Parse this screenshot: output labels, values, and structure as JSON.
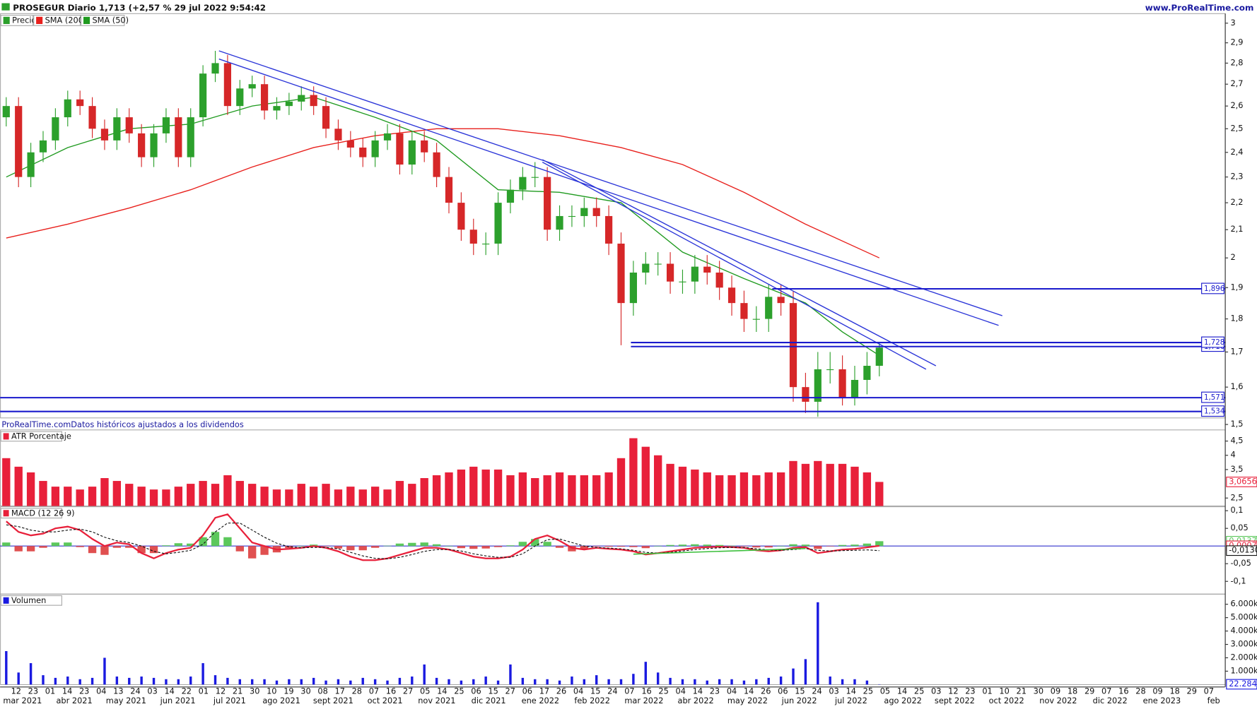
{
  "chart_data": [
    {
      "type": "candlestick",
      "title": "PROSEGUR Diario 1,713 (+2,57 % 29 jul 2022 9:54:42",
      "source": "www.ProRealTime.com",
      "note": "ProRealTime.comDatos históricos ajustados a los dividendos",
      "log": true,
      "xlim": [
        -0.5,
        99.1
      ],
      "ylim": [
        1.517,
        3.05
      ],
      "yticks": [
        3,
        {
          "value": 2.9,
          "label": "2,9"
        },
        {
          "value": 2.8,
          "label": "2,8"
        },
        {
          "value": 2.7,
          "label": "2,7"
        },
        {
          "value": 2.6,
          "label": "2,6"
        },
        {
          "value": 2.5,
          "label": "2,5"
        },
        {
          "value": 2.4,
          "label": "2,4"
        },
        {
          "value": 2.3,
          "label": "2,3"
        },
        {
          "value": 2.2,
          "label": "2,2"
        },
        {
          "value": 2.1,
          "label": "2,1"
        },
        2,
        {
          "value": 1.9,
          "label": "1,9"
        },
        {
          "value": 1.8,
          "label": "1,8"
        },
        {
          "value": 1.7,
          "label": "1,7"
        },
        {
          "value": 1.6,
          "label": "1,6"
        },
        {
          "value": 1.5,
          "label": "1,5"
        }
      ],
      "candles": {
        "name": "Precio",
        "up_color": "#2ca02c",
        "down_color": "#d62728",
        "open": [
          2.55,
          2.6,
          2.3,
          2.4,
          2.45,
          2.55,
          2.63,
          2.6,
          2.5,
          2.45,
          2.55,
          2.48,
          2.38,
          2.48,
          2.55,
          2.38,
          2.55,
          2.75,
          2.8,
          2.6,
          2.68,
          2.7,
          2.58,
          2.6,
          2.62,
          2.65,
          2.6,
          2.5,
          2.45,
          2.42,
          2.38,
          2.45,
          2.48,
          2.35,
          2.45,
          2.4,
          2.3,
          2.2,
          2.1,
          2.05,
          2.05,
          2.2,
          2.25,
          2.3,
          2.3,
          2.1,
          2.15,
          2.15,
          2.18,
          2.15,
          2.05,
          1.85,
          1.95,
          1.98,
          1.98,
          1.92,
          1.92,
          1.97,
          1.95,
          1.9,
          1.85,
          1.8,
          1.8,
          1.87,
          1.85,
          1.6,
          1.56,
          1.65,
          1.65,
          1.57,
          1.62,
          1.66
        ],
        "high": [
          2.64,
          2.64,
          2.44,
          2.49,
          2.59,
          2.67,
          2.67,
          2.64,
          2.54,
          2.59,
          2.59,
          2.52,
          2.52,
          2.59,
          2.59,
          2.59,
          2.79,
          2.86,
          2.84,
          2.72,
          2.74,
          2.74,
          2.64,
          2.66,
          2.69,
          2.69,
          2.64,
          2.54,
          2.49,
          2.46,
          2.49,
          2.52,
          2.52,
          2.49,
          2.49,
          2.44,
          2.34,
          2.24,
          2.14,
          2.09,
          2.24,
          2.29,
          2.34,
          2.36,
          2.34,
          2.19,
          2.19,
          2.22,
          2.22,
          2.19,
          2.09,
          1.99,
          2.02,
          2.02,
          2.02,
          1.96,
          2.01,
          2.01,
          1.99,
          1.94,
          1.89,
          1.84,
          1.91,
          1.91,
          1.89,
          1.64,
          1.7,
          1.7,
          1.69,
          1.66,
          1.7,
          1.73
        ],
        "low": [
          2.51,
          2.26,
          2.26,
          2.36,
          2.41,
          2.51,
          2.56,
          2.46,
          2.41,
          2.41,
          2.44,
          2.34,
          2.34,
          2.44,
          2.34,
          2.34,
          2.51,
          2.71,
          2.56,
          2.56,
          2.64,
          2.54,
          2.54,
          2.56,
          2.58,
          2.56,
          2.46,
          2.41,
          2.38,
          2.34,
          2.34,
          2.41,
          2.31,
          2.31,
          2.36,
          2.26,
          2.16,
          2.06,
          2.01,
          2.01,
          2.01,
          2.16,
          2.21,
          2.26,
          2.06,
          2.06,
          2.11,
          2.11,
          2.11,
          2.01,
          1.72,
          1.81,
          1.91,
          1.94,
          1.88,
          1.88,
          1.88,
          1.91,
          1.86,
          1.81,
          1.76,
          1.76,
          1.76,
          1.81,
          1.56,
          1.53,
          1.52,
          1.61,
          1.55,
          1.55,
          1.58,
          1.63
        ],
        "close": [
          2.6,
          2.3,
          2.4,
          2.45,
          2.55,
          2.63,
          2.6,
          2.5,
          2.45,
          2.55,
          2.48,
          2.38,
          2.48,
          2.55,
          2.38,
          2.55,
          2.75,
          2.8,
          2.6,
          2.68,
          2.7,
          2.58,
          2.6,
          2.62,
          2.65,
          2.6,
          2.5,
          2.45,
          2.42,
          2.38,
          2.45,
          2.48,
          2.35,
          2.45,
          2.4,
          2.3,
          2.2,
          2.1,
          2.05,
          2.05,
          2.2,
          2.25,
          2.3,
          2.3,
          2.1,
          2.15,
          2.15,
          2.18,
          2.15,
          2.05,
          1.85,
          1.95,
          1.98,
          1.98,
          1.92,
          1.92,
          1.97,
          1.95,
          1.9,
          1.85,
          1.8,
          1.8,
          1.87,
          1.85,
          1.6,
          1.56,
          1.65,
          1.65,
          1.57,
          1.62,
          1.66,
          1.713
        ]
      },
      "series": [
        {
          "name": "SMA (200)",
          "color": "#e8201c",
          "x": [
            0,
            5,
            10,
            15,
            20,
            25,
            30,
            35,
            40,
            45,
            50,
            55,
            60,
            65,
            71
          ],
          "values": [
            2.07,
            2.12,
            2.18,
            2.25,
            2.34,
            2.42,
            2.47,
            2.5,
            2.5,
            2.47,
            2.42,
            2.35,
            2.24,
            2.12,
            2.0
          ]
        },
        {
          "name": "SMA (50)",
          "color": "#1f9a1f",
          "x": [
            0,
            5,
            10,
            15,
            20,
            25,
            30,
            35,
            40,
            45,
            50,
            55,
            60,
            65,
            68,
            71
          ],
          "values": [
            2.3,
            2.42,
            2.5,
            2.52,
            2.6,
            2.64,
            2.55,
            2.45,
            2.25,
            2.24,
            2.2,
            2.02,
            1.93,
            1.85,
            1.76,
            1.69
          ]
        }
      ],
      "trendlines": [
        {
          "color": "#2b35d8",
          "x": [
            17.3,
            81.0
          ],
          "values": [
            2.86,
            1.81
          ]
        },
        {
          "color": "#2b35d8",
          "x": [
            17.3,
            80.7
          ],
          "values": [
            2.82,
            1.78
          ]
        },
        {
          "color": "#2b35d8",
          "x": [
            43.6,
            75.6
          ],
          "values": [
            2.37,
            1.66
          ]
        },
        {
          "color": "#2b35d8",
          "x": [
            43.6,
            74.8
          ],
          "values": [
            2.36,
            1.65
          ]
        }
      ],
      "levels": [
        {
          "value": 1.896,
          "label": "1,896",
          "from": 62.3
        },
        {
          "value": 1.716,
          "label": "1,716",
          "from": 50.8
        },
        {
          "value": 1.728,
          "label": "1,728",
          "from": 50.8
        },
        {
          "value": 1.571,
          "label": "1,571",
          "from": -0.5
        },
        {
          "value": 1.534,
          "label": "1,534",
          "from": -0.5
        }
      ],
      "level_color": "#1a1acc"
    },
    {
      "type": "bar",
      "title": "ATR Porcentaje",
      "color": "#e8203a",
      "ylim": [
        2.22,
        4.89
      ],
      "yticks": [
        {
          "value": 2.5,
          "label": "2,5"
        },
        {
          "value": 3.5,
          "label": "3,5"
        },
        4,
        {
          "value": 4.5,
          "label": "4,5"
        }
      ],
      "values": [
        3.9,
        3.6,
        3.4,
        3.1,
        2.9,
        2.9,
        2.8,
        2.9,
        3.2,
        3.1,
        3.0,
        2.9,
        2.8,
        2.8,
        2.9,
        3.0,
        3.1,
        3.0,
        3.3,
        3.1,
        3.0,
        2.9,
        2.8,
        2.8,
        3.0,
        2.9,
        3.0,
        2.8,
        2.9,
        2.8,
        2.9,
        2.8,
        3.1,
        3.0,
        3.2,
        3.3,
        3.4,
        3.5,
        3.6,
        3.5,
        3.5,
        3.3,
        3.4,
        3.2,
        3.3,
        3.4,
        3.3,
        3.3,
        3.3,
        3.4,
        3.9,
        4.6,
        4.3,
        4.0,
        3.7,
        3.6,
        3.5,
        3.4,
        3.3,
        3.3,
        3.4,
        3.3,
        3.4,
        3.4,
        3.8,
        3.7,
        3.8,
        3.7,
        3.7,
        3.6,
        3.4,
        3.0656
      ],
      "last_label": "3,0656"
    },
    {
      "type": "macd",
      "title": "MACD (12 26 9)",
      "ylim": [
        -0.136,
        0.111
      ],
      "yticks": [
        {
          "value": 0.1,
          "label": "0,1"
        },
        {
          "value": 0.05,
          "label": "0,05"
        },
        {
          "value": -0.05,
          "label": "-0,05"
        },
        {
          "value": -0.1,
          "label": "-0,1"
        }
      ],
      "zero_line": 0,
      "zero_color": "#3333cc",
      "histogram": {
        "pos_color": "#5cc85c",
        "neg_color": "#e05050",
        "last_label": "0,0137",
        "values": [
          0.01,
          -0.015,
          -0.015,
          -0.005,
          0.01,
          0.01,
          -0.003,
          -0.02,
          -0.025,
          -0.005,
          -0.005,
          -0.02,
          -0.02,
          0.002,
          0.008,
          0.007,
          0.025,
          0.04,
          0.025,
          -0.015,
          -0.035,
          -0.025,
          -0.018,
          -0.006,
          0.0,
          0.004,
          -0.001,
          -0.007,
          -0.012,
          -0.012,
          -0.005,
          0.001,
          0.007,
          0.009,
          0.01,
          0.005,
          0.0,
          -0.006,
          -0.008,
          -0.007,
          -0.003,
          0.002,
          0.012,
          0.02,
          0.012,
          -0.005,
          -0.015,
          -0.01,
          -0.001,
          -0.002,
          -0.002,
          -0.003,
          -0.006,
          0.0,
          0.003,
          0.004,
          0.005,
          0.004,
          0.003,
          0.001,
          -0.001,
          -0.004,
          -0.004,
          0.0,
          0.005,
          0.004,
          -0.008,
          -0.001,
          0.003,
          0.004,
          0.007,
          0.0137
        ]
      },
      "series": [
        {
          "color": "#e8203a",
          "last_label": "0,0007",
          "values": [
            0.07,
            0.04,
            0.03,
            0.035,
            0.05,
            0.055,
            0.045,
            0.02,
            0.0,
            0.01,
            0.005,
            -0.02,
            -0.035,
            -0.02,
            -0.01,
            -0.005,
            0.03,
            0.08,
            0.09,
            0.05,
            0.01,
            0.0,
            -0.01,
            -0.008,
            -0.005,
            0.0,
            -0.005,
            -0.015,
            -0.03,
            -0.04,
            -0.04,
            -0.035,
            -0.025,
            -0.015,
            -0.005,
            -0.005,
            -0.01,
            -0.02,
            -0.03,
            -0.035,
            -0.035,
            -0.03,
            -0.01,
            0.02,
            0.03,
            0.015,
            -0.005,
            -0.01,
            -0.005,
            -0.008,
            -0.01,
            -0.015,
            -0.024,
            -0.02,
            -0.015,
            -0.01,
            -0.005,
            -0.003,
            -0.002,
            -0.003,
            -0.005,
            -0.012,
            -0.015,
            -0.012,
            -0.005,
            -0.003,
            -0.02,
            -0.015,
            -0.01,
            -0.008,
            -0.004,
            0.0007
          ]
        },
        {
          "color": "#111111",
          "dash": true,
          "last_label": "-0,0130",
          "values": [
            0.06,
            0.055,
            0.045,
            0.04,
            0.04,
            0.045,
            0.048,
            0.04,
            0.025,
            0.015,
            0.01,
            0.0,
            -0.015,
            -0.022,
            -0.018,
            -0.012,
            0.005,
            0.04,
            0.065,
            0.065,
            0.045,
            0.025,
            0.008,
            -0.002,
            -0.005,
            -0.004,
            -0.004,
            -0.008,
            -0.018,
            -0.028,
            -0.035,
            -0.036,
            -0.032,
            -0.024,
            -0.015,
            -0.01,
            -0.01,
            -0.014,
            -0.022,
            -0.028,
            -0.032,
            -0.032,
            -0.022,
            0.0,
            0.018,
            0.02,
            0.01,
            0.0,
            -0.004,
            -0.006,
            -0.008,
            -0.012,
            -0.018,
            -0.02,
            -0.018,
            -0.014,
            -0.01,
            -0.007,
            -0.005,
            -0.004,
            -0.004,
            -0.008,
            -0.011,
            -0.012,
            -0.01,
            -0.007,
            -0.012,
            -0.014,
            -0.013,
            -0.012,
            -0.011,
            -0.013
          ]
        }
      ],
      "trendlines": [
        {
          "color": "#3cbf3c",
          "x": [
            51.0,
            65.0
          ],
          "values": [
            -0.023,
            -0.007
          ]
        }
      ]
    },
    {
      "type": "bar",
      "title": "Volumen",
      "color": "#1a1ae0",
      "ylim": [
        0,
        6760000
      ],
      "yticks": [
        {
          "value": 1000000,
          "label": "1.000k"
        },
        {
          "value": 2000000,
          "label": "2.000k"
        },
        {
          "value": 3000000,
          "label": "3.000k"
        },
        {
          "value": 4000000,
          "label": "4.000k"
        },
        {
          "value": 5000000,
          "label": "5.000k"
        },
        {
          "value": 6000000,
          "label": "6.000k"
        }
      ],
      "values": [
        2500000,
        900000,
        1600000,
        700000,
        500000,
        600000,
        400000,
        500000,
        2000000,
        600000,
        500000,
        600000,
        500000,
        400000,
        400000,
        600000,
        1600000,
        700000,
        500000,
        400000,
        400000,
        400000,
        300000,
        400000,
        400000,
        500000,
        300000,
        400000,
        300000,
        500000,
        400000,
        300000,
        500000,
        600000,
        1500000,
        500000,
        400000,
        300000,
        400000,
        600000,
        300000,
        1500000,
        500000,
        400000,
        400000,
        300000,
        600000,
        400000,
        700000,
        400000,
        400000,
        800000,
        1700000,
        900000,
        500000,
        400000,
        400000,
        300000,
        400000,
        400000,
        300000,
        400000,
        500000,
        600000,
        1200000,
        1900000,
        6150000,
        600000,
        400000,
        400000,
        300000,
        22284
      ],
      "last_label": "22.284",
      "day_labels": [
        "12",
        "23",
        "01",
        "14",
        "23",
        "04",
        "13",
        "24",
        "03",
        "14",
        "22",
        "01",
        "12",
        "21",
        "30",
        "10",
        "19",
        "30",
        "08",
        "17",
        "28",
        "07",
        "16",
        "27",
        "05",
        "14",
        "25",
        "06",
        "15",
        "27",
        "06",
        "17",
        "26",
        "04",
        "15",
        "24",
        "07",
        "16",
        "25",
        "04",
        "14",
        "23",
        "04",
        "14",
        "26",
        "06",
        "15",
        "24",
        "03",
        "14",
        "25",
        "05",
        "14",
        "25",
        "03",
        "12",
        "23",
        "01",
        "10",
        "21",
        "30",
        "09",
        "18",
        "29",
        "07",
        "16",
        "28",
        "09",
        "18",
        "29",
        "07"
      ],
      "month_labels": [
        "mar 2021",
        "abr 2021",
        "may 2021",
        "jun 2021",
        "jul 2021",
        "ago 2021",
        "sept 2021",
        "oct 2021",
        "nov 2021",
        "dic 2021",
        "ene 2022",
        "feb 2022",
        "mar 2022",
        "abr 2022",
        "may 2022",
        "jun 2022",
        "jul 2022",
        "ago 2022",
        "sept 2022",
        "oct 2022",
        "nov 2022",
        "dic 2022",
        "ene 2023",
        "feb"
      ]
    }
  ]
}
